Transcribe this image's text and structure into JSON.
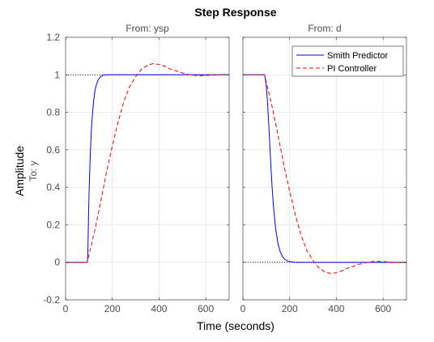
{
  "chart_data": {
    "type": "line",
    "title": "Step Response",
    "xlabel": "Time (seconds)",
    "ylabel": "Amplitude",
    "ylabel_sub": "To: y",
    "grid": true,
    "legend_placement": "top-right",
    "ylim": [
      -0.2,
      1.2
    ],
    "yticks": [
      -0.2,
      0,
      0.2,
      0.4,
      0.6,
      0.8,
      1,
      1.2
    ],
    "ytick_labels": [
      "-0.2",
      "0",
      "0.2",
      "0.4",
      "0.6",
      "0.8",
      "1",
      "1.2"
    ],
    "xlim": [
      0,
      700
    ],
    "xticks": [
      0,
      200,
      400,
      600
    ],
    "xtick_labels": [
      "0",
      "200",
      "400",
      "600"
    ],
    "legend": [
      {
        "name": "Smith Predictor",
        "color": "#0000ff",
        "style": "solid"
      },
      {
        "name": "PI Controller",
        "color": "#ff0000",
        "style": "dashed"
      }
    ],
    "panels": [
      {
        "subtitle": "From: ysp",
        "reference": {
          "x": [
            0,
            700
          ],
          "y": [
            1,
            1
          ]
        },
        "series": [
          {
            "name": "Smith Predictor",
            "x": [
              0,
              93,
              95,
              100,
              105,
              110,
              115,
              120,
              125,
              130,
              140,
              150,
              160,
              170,
              180,
              700
            ],
            "y": [
              0,
              0,
              0.04,
              0.35,
              0.55,
              0.7,
              0.79,
              0.86,
              0.91,
              0.94,
              0.975,
              0.99,
              0.997,
              1.0,
              1.0,
              1.0
            ]
          },
          {
            "name": "PI Controller",
            "x": [
              0,
              93,
              100,
              125,
              150,
              175,
              200,
              225,
              250,
              275,
              300,
              325,
              350,
              375,
              400,
              425,
              450,
              475,
              500,
              525,
              550,
              575,
              600,
              625,
              650,
              700
            ],
            "y": [
              0,
              0,
              0.04,
              0.17,
              0.32,
              0.48,
              0.62,
              0.75,
              0.86,
              0.94,
              0.99,
              1.03,
              1.05,
              1.06,
              1.055,
              1.045,
              1.03,
              1.02,
              1.01,
              1.002,
              0.997,
              0.995,
              0.996,
              0.998,
              0.999,
              1.0
            ]
          }
        ]
      },
      {
        "subtitle": "From: d",
        "reference": {
          "x": [
            0,
            700
          ],
          "y": [
            0,
            0
          ]
        },
        "series": [
          {
            "name": "Smith Predictor",
            "x": [
              0,
              90,
              93,
              95,
              100,
              105,
              110,
              115,
              120,
              125,
              130,
              140,
              150,
              160,
              170,
              180,
              190,
              200,
              220,
              250,
              700
            ],
            "y": [
              1,
              1,
              1,
              0.985,
              0.94,
              0.86,
              0.75,
              0.63,
              0.51,
              0.4,
              0.31,
              0.18,
              0.1,
              0.055,
              0.03,
              0.015,
              0.008,
              0.004,
              0.001,
              0,
              0
            ]
          },
          {
            "name": "PI Controller",
            "x": [
              0,
              93,
              100,
              125,
              150,
              175,
              200,
              225,
              250,
              275,
              300,
              325,
              350,
              375,
              400,
              425,
              450,
              475,
              500,
              525,
              550,
              575,
              600,
              625,
              650,
              700
            ],
            "y": [
              1,
              1,
              0.96,
              0.83,
              0.68,
              0.52,
              0.38,
              0.25,
              0.14,
              0.06,
              0.01,
              -0.03,
              -0.05,
              -0.06,
              -0.055,
              -0.045,
              -0.03,
              -0.02,
              -0.01,
              -0.002,
              0.003,
              0.005,
              0.004,
              0.002,
              0.001,
              0
            ]
          }
        ]
      }
    ]
  }
}
